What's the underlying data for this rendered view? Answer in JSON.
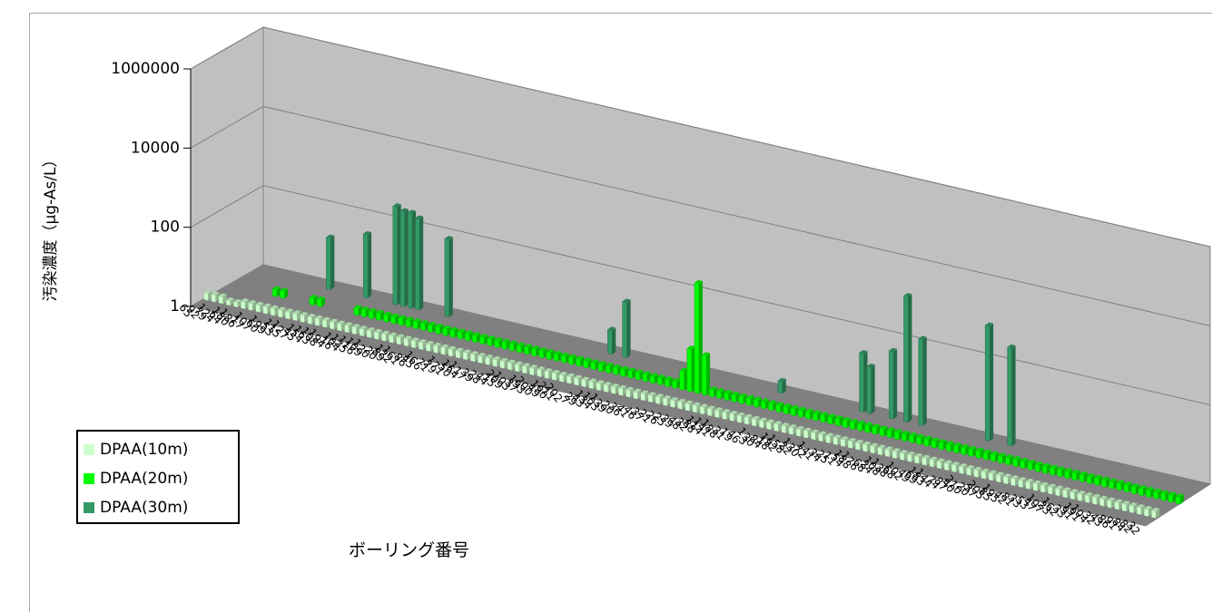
{
  "chart_data": {
    "type": "bar",
    "projection": "3d",
    "xlabel": "ボーリング番号",
    "ylabel": "汚染濃度（μg-As/L）",
    "y_scale": "log",
    "ylim": [
      1,
      1000000
    ],
    "yticks": [
      "1",
      "100",
      "10000",
      "1000000"
    ],
    "grid": true,
    "legend_position": "left",
    "categories": [
      "65",
      "92",
      "79",
      "124",
      "64",
      "180",
      "186",
      "17",
      "107",
      "60",
      "199",
      "53",
      "115",
      "127",
      "45",
      "154",
      "163",
      "108",
      "194",
      "16",
      "104",
      "125",
      "116",
      "109",
      "120",
      "20",
      "89",
      "122",
      "161",
      "86",
      "45",
      "166",
      "71",
      "29",
      "171",
      "50",
      "164",
      "117",
      "39",
      "28",
      "44",
      "15",
      "209",
      "103",
      "37",
      "193",
      "200",
      "49",
      "190",
      "211",
      "202",
      "7",
      "29",
      "43",
      "134",
      "103",
      "139",
      "20",
      "36",
      "41",
      "46",
      "37",
      "21",
      "26",
      "25",
      "39",
      "48",
      "32",
      "88",
      "114",
      "141",
      "188",
      "31",
      "19",
      "46",
      "3",
      "130",
      "84",
      "18",
      "192",
      "158",
      "22",
      "130",
      "72",
      "141",
      "34",
      "25",
      "11",
      "54",
      "188",
      "176",
      "68",
      "24",
      "108",
      "138",
      "68",
      "102",
      "49",
      "69",
      "183",
      "144",
      "74",
      "87",
      "40",
      "210",
      "20",
      "37",
      "205",
      "85",
      "195",
      "42",
      "81",
      "33",
      "53",
      "47",
      "107",
      "23",
      "162",
      "33",
      "91",
      "191",
      "104",
      "32",
      "43",
      "86",
      "91",
      "84",
      "82",
      "32"
    ],
    "series": [
      {
        "name": "DPAA(10m)",
        "color": "#ccffcc",
        "values": [
          1.5,
          1.5,
          1.5,
          1.3,
          1.3,
          1.5,
          1.5,
          1.5,
          1.5,
          1.5,
          1.5,
          1.5,
          1.5,
          1.5,
          1.5,
          1.5,
          1.5,
          1.5,
          1.5,
          1.5,
          1.5,
          1.5,
          1.5,
          1.5,
          1.5,
          1.5,
          1.5,
          1.5,
          1.5,
          1.5,
          1.5,
          1.5,
          1.5,
          1.5,
          1.5,
          1.5,
          1.5,
          1.5,
          1.5,
          1.5,
          1.5,
          1.5,
          1.5,
          1.5,
          1.5,
          1.5,
          1.5,
          1.5,
          1.5,
          1.5,
          1.5,
          1.5,
          1.5,
          1.5,
          1.5,
          1.5,
          1.5,
          1.5,
          1.5,
          1.5,
          1.5,
          1.5,
          1.5,
          1.5,
          1.5,
          1.5,
          1.5,
          1.5,
          1.5,
          1.5,
          1.5,
          1.5,
          1.5,
          1.5,
          1.5,
          1.5,
          1.5,
          1.5,
          1.5,
          1.5,
          1.5,
          1.5,
          1.5,
          1.5,
          1.5,
          1.5,
          1.5,
          1.5,
          1.5,
          1.5,
          1.5,
          1.5,
          1.5,
          1.5,
          1.5,
          1.5,
          1.5,
          1.5,
          1.5,
          1.5,
          1.5,
          1.5,
          1.5,
          1.5,
          1.5,
          1.5,
          1.5,
          1.5,
          1.5,
          1.5,
          1.5,
          1.5,
          1.5,
          1.5,
          1.5,
          1.5,
          1.5,
          1.5,
          1.5,
          1.5,
          1.5,
          1.5,
          1.5,
          1.5,
          1.5,
          1.5,
          1.5,
          1.5,
          1.5
        ]
      },
      {
        "name": "DPAA(20m)",
        "color": "#00ff00",
        "values": [
          0,
          0,
          0,
          0,
          0,
          0,
          1.5,
          1.5,
          0,
          0,
          0,
          1.5,
          1.5,
          0,
          0,
          0,
          0,
          1.5,
          1.5,
          1.5,
          1.5,
          1.5,
          1.5,
          1.5,
          1.5,
          1.5,
          1.5,
          1.5,
          1.5,
          1.5,
          1.5,
          1.5,
          1.5,
          1.5,
          1.5,
          1.5,
          1.5,
          1.5,
          1.5,
          1.5,
          1.5,
          1.5,
          1.5,
          1.5,
          1.5,
          1.5,
          1.5,
          1.5,
          1.5,
          1.5,
          1.5,
          1.5,
          1.5,
          1.5,
          1.5,
          1.5,
          1.5,
          1.5,
          1.5,
          1.5,
          1.5,
          3,
          12,
          600,
          10,
          1.5,
          1.5,
          1.5,
          1.5,
          1.5,
          1.5,
          1.5,
          1.5,
          1.5,
          1.5,
          1.5,
          1.5,
          1.5,
          1.5,
          1.5,
          1.5,
          1.5,
          1.5,
          1.5,
          1.5,
          1.5,
          1.5,
          1.5,
          1.5,
          1.5,
          1.5,
          1.5,
          1.5,
          1.5,
          1.5,
          1.5,
          1.5,
          1.5,
          1.5,
          1.5,
          1.5,
          1.5,
          1.5,
          1.5,
          1.5,
          1.5,
          1.5,
          1.5,
          1.5,
          1.5,
          1.5,
          1.5,
          1.5,
          1.5,
          1.5,
          1.5,
          1.5,
          1.5,
          1.5,
          1.5,
          1.5,
          1.5,
          1.5,
          1.5,
          1.5,
          1.5,
          1.5,
          1.5,
          1.5
        ]
      },
      {
        "name": "DPAA(30m)",
        "color": "#339966",
        "values": [
          0,
          0,
          0,
          0,
          0,
          0,
          0,
          0,
          0,
          0,
          20,
          0,
          0,
          0,
          0,
          40,
          0,
          0,
          0,
          300,
          250,
          250,
          200,
          0,
          0,
          0,
          90,
          0,
          0,
          0,
          0,
          0,
          0,
          0,
          0,
          0,
          0,
          0,
          0,
          0,
          0,
          0,
          0,
          0,
          0,
          0,
          0,
          0,
          4,
          0,
          25,
          0,
          0,
          0,
          0,
          0,
          0,
          0,
          0,
          0,
          0,
          0,
          0,
          0,
          0,
          0,
          0,
          0,
          0,
          0,
          0,
          2,
          0,
          0,
          0,
          0,
          0,
          0,
          0,
          0,
          0,
          0,
          30,
          15,
          0,
          0,
          50,
          0,
          1500,
          0,
          150,
          0,
          0,
          0,
          0,
          0,
          0,
          0,
          0,
          800,
          0,
          0,
          300,
          0,
          0,
          0,
          0,
          0,
          0,
          0,
          0,
          0,
          0,
          0,
          0,
          0,
          0,
          0,
          0,
          0,
          0,
          0,
          0,
          0,
          0,
          0,
          0,
          0,
          0
        ]
      }
    ]
  }
}
